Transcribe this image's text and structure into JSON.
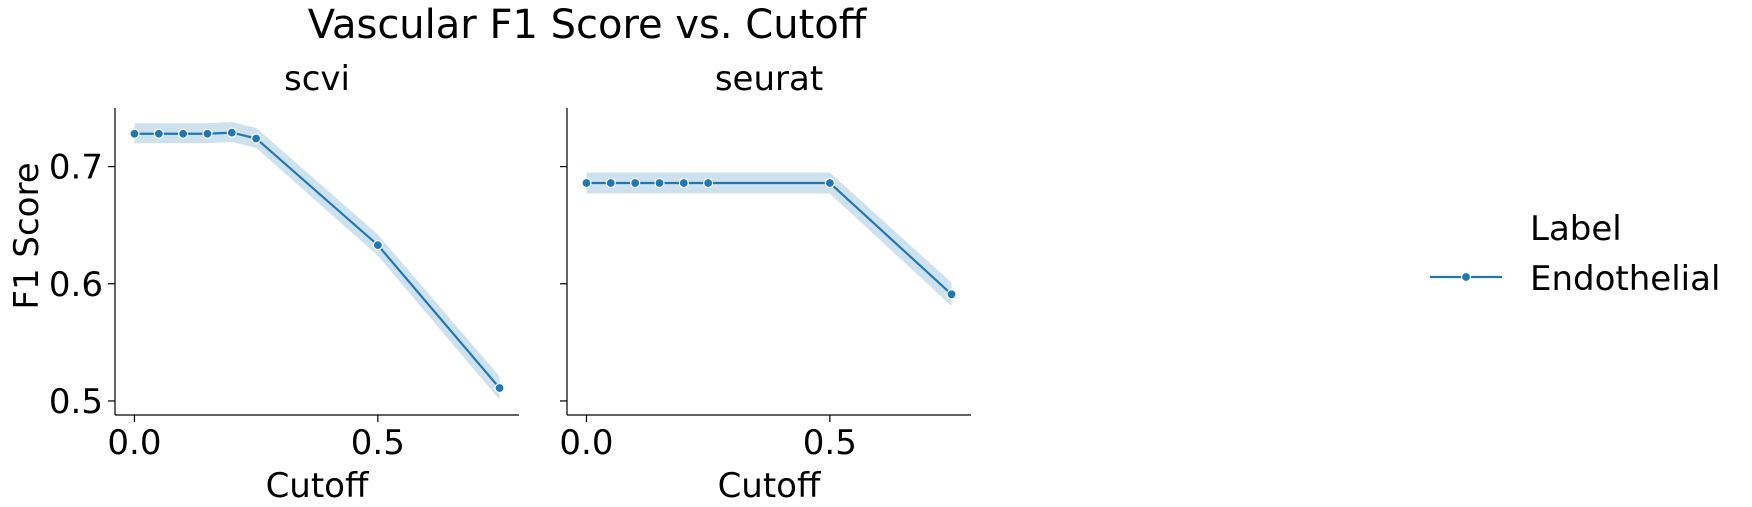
{
  "chart_data": {
    "type": "line",
    "title": "Vascular F1 Score vs. Cutoff",
    "legend": {
      "title": "Label",
      "placement": "right",
      "entries": [
        "Endothelial"
      ]
    },
    "ylabel": "F1 Score",
    "ylim": [
      0.488,
      0.75
    ],
    "yticks": [
      0.5,
      0.6,
      0.7
    ],
    "ytick_labels": [
      "0.5",
      "0.6",
      "0.7"
    ],
    "xticks": [
      0.0,
      0.5
    ],
    "xtick_labels": [
      "0.0",
      "0.5"
    ],
    "color": "#1f77b4",
    "grid": false,
    "panels": [
      {
        "title": "scvi",
        "xlabel": "Cutoff",
        "xlim": [
          -0.04,
          0.79
        ],
        "series": [
          {
            "name": "Endothelial",
            "x": [
              0.0,
              0.05,
              0.1,
              0.15,
              0.2,
              0.25,
              0.5,
              0.75
            ],
            "y": [
              0.728,
              0.728,
              0.728,
              0.728,
              0.729,
              0.724,
              0.633,
              0.511
            ],
            "ci_low": [
              0.72,
              0.72,
              0.72,
              0.72,
              0.721,
              0.716,
              0.624,
              0.501
            ],
            "ci_high": [
              0.737,
              0.737,
              0.737,
              0.737,
              0.738,
              0.733,
              0.642,
              0.521
            ]
          }
        ]
      },
      {
        "title": "seurat",
        "xlabel": "Cutoff",
        "xlim": [
          -0.04,
          0.79
        ],
        "series": [
          {
            "name": "Endothelial",
            "x": [
              0.0,
              0.05,
              0.1,
              0.15,
              0.2,
              0.25,
              0.5,
              0.75
            ],
            "y": [
              0.686,
              0.686,
              0.686,
              0.686,
              0.686,
              0.686,
              0.686,
              0.591
            ],
            "ci_low": [
              0.677,
              0.677,
              0.677,
              0.677,
              0.677,
              0.677,
              0.677,
              0.581
            ],
            "ci_high": [
              0.695,
              0.695,
              0.695,
              0.695,
              0.695,
              0.695,
              0.695,
              0.601
            ]
          }
        ]
      }
    ]
  }
}
